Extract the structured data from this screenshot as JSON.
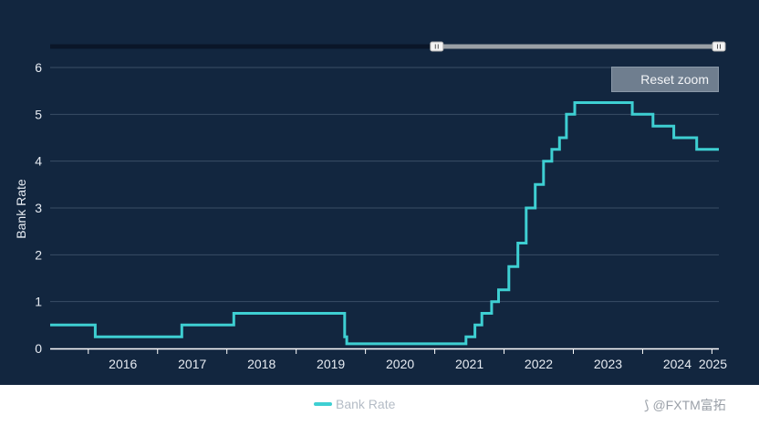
{
  "chart_data": {
    "type": "line",
    "step": true,
    "title": "",
    "xlabel": "",
    "ylabel": "Bank Rate",
    "ylim": [
      0,
      6
    ],
    "yticks": [
      0,
      1,
      2,
      3,
      4,
      5,
      6
    ],
    "xlim": [
      2015.45,
      2025.1
    ],
    "xtick_labels": [
      "2016",
      "2017",
      "2018",
      "2019",
      "2020",
      "2021",
      "2022",
      "2023",
      "2024",
      "2025"
    ],
    "grid": true,
    "legend_position": "bottom-center",
    "series": [
      {
        "name": "Bank Rate",
        "color": "#3ecfd2",
        "points": [
          [
            2015.45,
            0.5
          ],
          [
            2016.1,
            0.25
          ],
          [
            2017.35,
            0.5
          ],
          [
            2018.1,
            0.75
          ],
          [
            2019.7,
            0.25
          ],
          [
            2019.73,
            0.1
          ],
          [
            2021.45,
            0.25
          ],
          [
            2021.58,
            0.5
          ],
          [
            2021.68,
            0.75
          ],
          [
            2021.82,
            1.0
          ],
          [
            2021.92,
            1.25
          ],
          [
            2022.07,
            1.75
          ],
          [
            2022.2,
            2.25
          ],
          [
            2022.32,
            3.0
          ],
          [
            2022.45,
            3.5
          ],
          [
            2022.57,
            4.0
          ],
          [
            2022.69,
            4.25
          ],
          [
            2022.8,
            4.5
          ],
          [
            2022.9,
            5.0
          ],
          [
            2023.02,
            5.25
          ],
          [
            2023.85,
            5.0
          ],
          [
            2024.15,
            4.75
          ],
          [
            2024.45,
            4.5
          ],
          [
            2024.78,
            4.25
          ],
          [
            2025.1,
            4.25
          ]
        ]
      }
    ]
  },
  "reset_zoom_label": "Reset zoom",
  "legend": {
    "label": "Bank Rate"
  },
  "watermark": {
    "icon": "fxtm-logo-icon",
    "text": "@FXTM富拓"
  },
  "navigator": {
    "range_start_fraction": 0.575,
    "range_end_fraction": 1.0
  },
  "colors": {
    "panel": "#12263f",
    "grid": "#3a4e66",
    "line": "#3ecfd2",
    "text": "#e6ebf2"
  }
}
